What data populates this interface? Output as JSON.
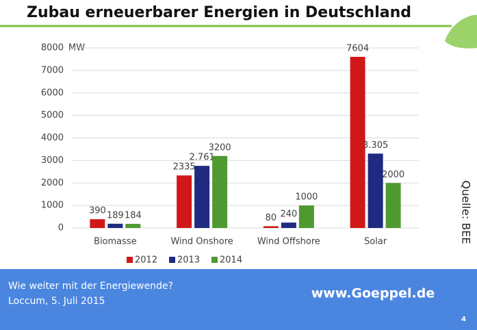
{
  "chart_data": {
    "type": "bar",
    "title": "Zubau erneuerbarer Energien in Deutschland",
    "y_unit": "MW",
    "categories": [
      "Biomasse",
      "Wind Onshore",
      "Wind Offshore",
      "Solar"
    ],
    "series": [
      {
        "name": "2012",
        "color": "#d01818",
        "values": [
          390,
          2335,
          80,
          7604
        ]
      },
      {
        "name": "2013",
        "color": "#1f2a80",
        "values": [
          189,
          2761,
          240,
          3305
        ],
        "value_labels": [
          "189",
          "2.761",
          "240",
          "3.305"
        ]
      },
      {
        "name": "2014",
        "color": "#4f9a30",
        "values": [
          184,
          3200,
          1000,
          2000
        ]
      }
    ],
    "ylim": [
      0,
      8000
    ],
    "yticks": [
      0,
      1000,
      2000,
      3000,
      4000,
      5000,
      6000,
      7000,
      8000
    ],
    "grid": true,
    "legend": "bottom"
  },
  "source": "Quelle: BEE",
  "footer": {
    "line1": "Wie weiter mit der Energiewende?",
    "line2": "Loccum, 5. Juli 2015",
    "url": "www.Goeppel.de",
    "page": "4"
  }
}
